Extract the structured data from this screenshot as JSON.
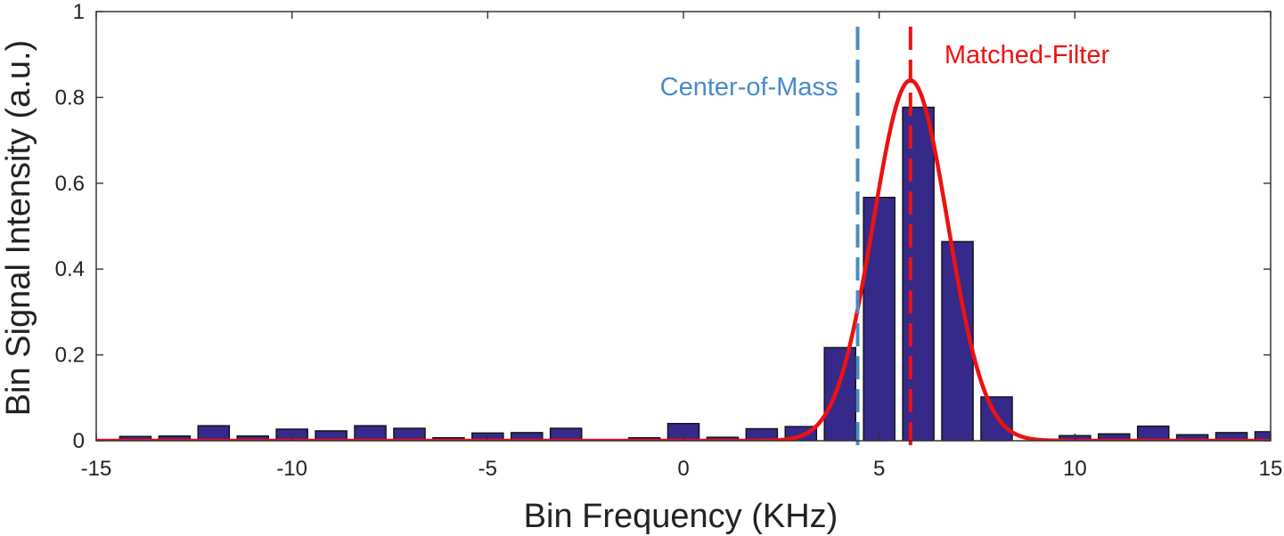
{
  "chart_data": {
    "type": "bar",
    "title": "",
    "xlabel": "Bin Frequency (KHz)",
    "ylabel": "Bin Signal Intensity (a.u.)",
    "xlim": [
      -15,
      15
    ],
    "ylim": [
      0,
      1
    ],
    "xticks": [
      -15,
      -10,
      -5,
      0,
      5,
      10,
      15
    ],
    "xtick_labels": [
      "-15",
      "-10",
      "-5",
      "0",
      "5",
      "10",
      "15"
    ],
    "yticks": [
      0,
      0.2,
      0.4,
      0.6,
      0.8,
      1
    ],
    "ytick_labels": [
      "0",
      "0.2",
      "0.4",
      "0.6",
      "0.8",
      "1"
    ],
    "grid": false,
    "bar_color": "#35298a",
    "bar_width": 0.8,
    "bars": {
      "x": [
        -14,
        -13,
        -12,
        -11,
        -10,
        -9,
        -8,
        -7,
        -6,
        -5,
        -4,
        -3,
        -2,
        -1,
        0,
        1,
        2,
        3,
        4,
        5,
        6,
        7,
        8,
        9,
        10,
        11,
        12,
        13,
        14,
        15
      ],
      "values": [
        0.01,
        0.011,
        0.035,
        0.011,
        0.027,
        0.023,
        0.035,
        0.029,
        0.007,
        0.018,
        0.019,
        0.029,
        0.002,
        0.007,
        0.04,
        0.008,
        0.028,
        0.033,
        0.217,
        0.567,
        0.777,
        0.464,
        0.102,
        0.0,
        0.012,
        0.016,
        0.034,
        0.014,
        0.019,
        0.021
      ]
    },
    "fit_curve": {
      "type": "gaussian",
      "color": "#ee1111",
      "amplitude": 0.84,
      "center": 5.8,
      "sigma": 0.95
    },
    "markers": [
      {
        "name": "Center-of-Mass",
        "x": 4.45,
        "color": "#4a8ac8",
        "label": "Center-of-Mass"
      },
      {
        "name": "Matched-Filter",
        "x": 5.8,
        "color": "#ee1111",
        "label": "Matched-Filter"
      }
    ]
  }
}
